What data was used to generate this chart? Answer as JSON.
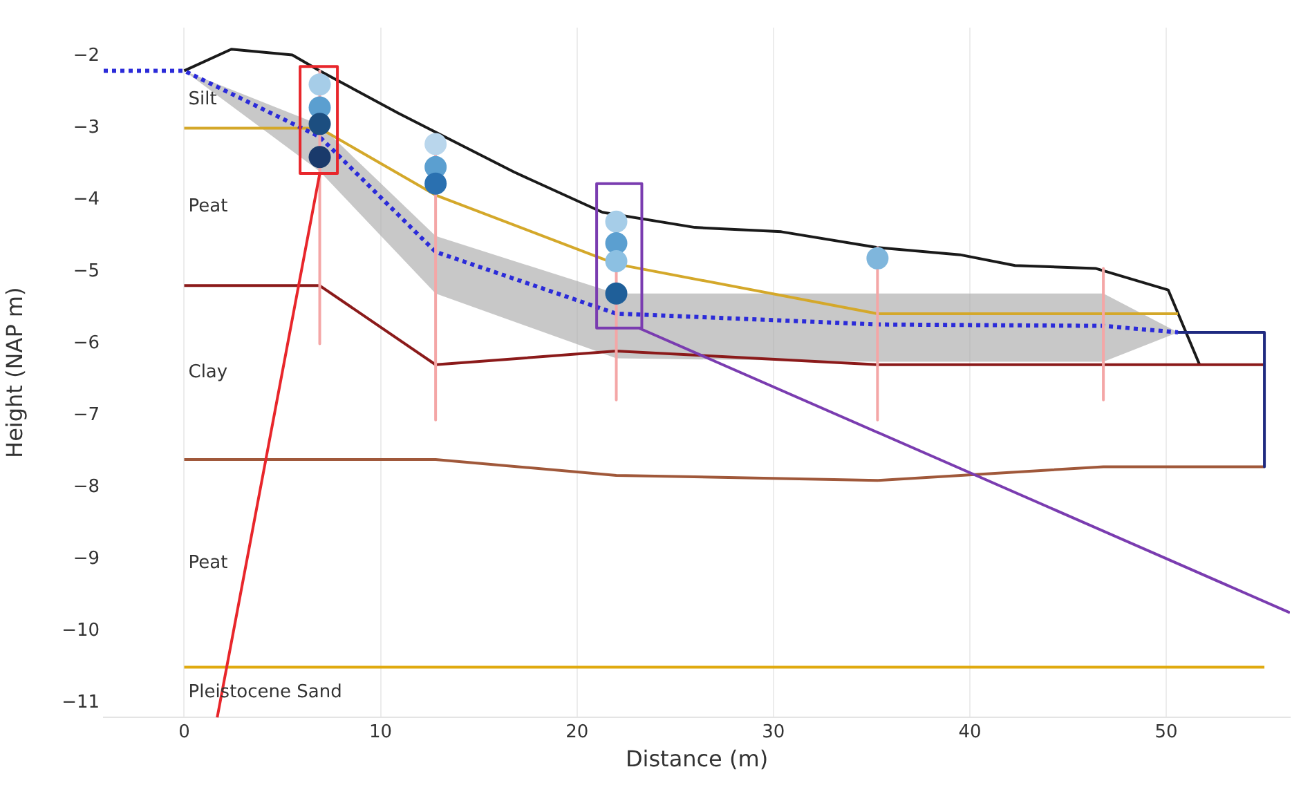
{
  "chart_data": {
    "type": "line",
    "xlabel": "Distance (m)",
    "ylabel": "Height (NAP m)",
    "xlim": [
      -4.1,
      56.3
    ],
    "ylim": [
      -11.2,
      -1.6
    ],
    "xticks": [
      0,
      10,
      20,
      30,
      40,
      50
    ],
    "yticks": [
      {
        "value": -2,
        "label": "−2"
      },
      {
        "value": -3,
        "label": "−3"
      },
      {
        "value": -4,
        "label": "−4"
      },
      {
        "value": -5,
        "label": "−5"
      },
      {
        "value": -6,
        "label": "−6"
      },
      {
        "value": -7,
        "label": "−7"
      },
      {
        "value": -8,
        "label": "−8"
      },
      {
        "value": -9,
        "label": "−9"
      },
      {
        "value": -10,
        "label": "−10"
      },
      {
        "value": -11,
        "label": "−11"
      }
    ],
    "grid": "x",
    "marker": "none",
    "line_style": "solid",
    "series": [
      {
        "color": "#1a1a1a",
        "x": [
          0,
          2.4,
          5.5,
          6.9,
          10.9,
          13.7,
          16.8,
          21.3,
          26,
          30.4,
          35.3,
          39.5,
          42.3,
          46.4,
          50.1,
          51.7
        ],
        "values": [
          -2.2,
          -1.9,
          -1.98,
          -2.2,
          -2.79,
          -3.18,
          -3.61,
          -4.17,
          -4.38,
          -4.44,
          -4.66,
          -4.76,
          -4.91,
          -4.95,
          -5.25,
          -6.29
        ]
      },
      {
        "color": "#d4a82a",
        "x": [
          0,
          6.9,
          12.8,
          22,
          35.3,
          50.6
        ],
        "values": [
          -3,
          -3,
          -3.93,
          -4.89,
          -5.58,
          -5.58
        ]
      },
      {
        "color": "#8b1a1a",
        "x": [
          0,
          6.9,
          12.8,
          22,
          35.3,
          55
        ],
        "values": [
          -5.19,
          -5.19,
          -6.29,
          -6.1,
          -6.29,
          -6.29
        ]
      },
      {
        "color": "#a0583a",
        "x": [
          0,
          12.8,
          22,
          35.3,
          46.8,
          55
        ],
        "values": [
          -7.61,
          -7.61,
          -7.83,
          -7.9,
          -7.71,
          -7.71
        ]
      },
      {
        "color": "#e0aa10",
        "x": [
          0,
          55
        ],
        "values": [
          -10.5,
          -10.5
        ]
      },
      {
        "color": "#2b2bd9",
        "line_style": "dotted",
        "x": [
          -4.1,
          0,
          6.9,
          12.8,
          22,
          35.3,
          46.8,
          50.6
        ],
        "values": [
          -2.2,
          -2.2,
          -3.12,
          -4.72,
          -5.58,
          -5.73,
          -5.75,
          -5.84
        ],
        "lower": [
          null,
          -2.2,
          -3.6,
          -5.3,
          -6.2,
          -6.25,
          -6.25,
          -5.84
        ],
        "upper": [
          null,
          -2.2,
          -2.95,
          -4.5,
          -5.3,
          -5.3,
          -5.3,
          -5.84
        ]
      },
      {
        "color": "#1f2a80",
        "x": [
          50.6,
          55,
          55
        ],
        "values": [
          -5.84,
          -5.84,
          -7.71
        ]
      },
      {
        "color": "#f4a6a6",
        "x": [
          6.9,
          6.9
        ],
        "values": [
          -2.2,
          -6.0
        ]
      },
      {
        "color": "#f4a6a6",
        "x": [
          12.8,
          12.8
        ],
        "values": [
          -3.1,
          -7.06
        ]
      },
      {
        "color": "#f4a6a6",
        "x": [
          22,
          22
        ],
        "values": [
          -4.2,
          -6.78
        ]
      },
      {
        "color": "#f4a6a6",
        "x": [
          35.3,
          35.3
        ],
        "values": [
          -4.66,
          -7.06
        ]
      },
      {
        "color": "#f4a6a6",
        "x": [
          46.8,
          46.8
        ],
        "values": [
          -4.95,
          -6.78
        ]
      },
      {
        "type": "scatter",
        "marker": "circle",
        "x": [
          6.9,
          6.9,
          6.9,
          6.9,
          12.8,
          12.8,
          12.8,
          22,
          22,
          22,
          22,
          35.3
        ],
        "values": [
          -2.39,
          -2.71,
          -2.94,
          -3.4,
          -3.22,
          -3.54,
          -3.77,
          -4.3,
          -4.6,
          -4.85,
          -5.3,
          -4.81
        ],
        "colors": [
          "#a6cde8",
          "#5b9fd0",
          "#1c4e80",
          "#1a3a6b",
          "#b9d6ec",
          "#5b9fd0",
          "#2a70b0",
          "#a6cde8",
          "#5b9fd0",
          "#8cc0e2",
          "#1f5f99",
          "#7fb6dc"
        ]
      },
      {
        "color": "#e8262b",
        "x": [
          6.9,
          7.8,
          7.8,
          5.9,
          5.9,
          6.9,
          1.68
        ],
        "values": [
          -3.63,
          -3.63,
          -2.14,
          -2.14,
          -3.63,
          -3.63,
          -11.2
        ]
      },
      {
        "color": "#7a3cb0",
        "x": [
          23.15,
          23.3,
          23.3,
          21,
          21,
          23.15,
          56.3
        ],
        "values": [
          -5.78,
          -5.78,
          -3.77,
          -3.77,
          -5.78,
          -5.78,
          -9.74
        ]
      }
    ],
    "annotations": [
      "Silt",
      "Peat",
      "Clay",
      "Peat",
      "Pleistocene Sand"
    ]
  }
}
